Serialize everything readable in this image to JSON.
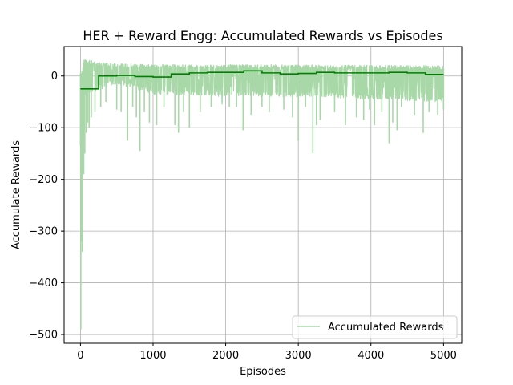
{
  "chart_data": {
    "type": "line",
    "title": "HER + Reward Engg: Accumulated Rewards vs Episodes",
    "xlabel": "Episodes",
    "ylabel": "Accumulate Rewards",
    "xlim": [
      -225,
      5250
    ],
    "ylim": [
      -517,
      57
    ],
    "xticks": [
      0,
      1000,
      2000,
      3000,
      4000,
      5000
    ],
    "yticks": [
      -500,
      -400,
      -300,
      -200,
      -100,
      0
    ],
    "xtick_labels": [
      "0",
      "1000",
      "2000",
      "3000",
      "4000",
      "5000"
    ],
    "ytick_labels": [
      "−500",
      "−400",
      "−300",
      "−200",
      "−100",
      "0"
    ],
    "grid": true,
    "legend_position": "lower-right",
    "series": [
      {
        "name": "Accumulated Rewards",
        "color": "#a8d8a8",
        "kind": "raw",
        "upper_band": [
          [
            20,
            10
          ],
          [
            50,
            33
          ],
          [
            150,
            30
          ],
          [
            250,
            27
          ],
          [
            400,
            24
          ],
          [
            1000,
            22
          ],
          [
            2500,
            22
          ],
          [
            5000,
            20
          ]
        ],
        "lower_band": [
          [
            0,
            -40
          ],
          [
            500,
            -15
          ],
          [
            1000,
            -35
          ],
          [
            2000,
            -40
          ],
          [
            3000,
            -40
          ],
          [
            4000,
            -45
          ],
          [
            5000,
            -50
          ]
        ],
        "spikes": [
          [
            0,
            -135
          ],
          [
            5,
            -490
          ],
          [
            15,
            -320
          ],
          [
            25,
            -340
          ],
          [
            45,
            -190
          ],
          [
            60,
            -150
          ],
          [
            80,
            -110
          ],
          [
            100,
            -90
          ],
          [
            120,
            -100
          ],
          [
            150,
            -80
          ],
          [
            200,
            -70
          ],
          [
            280,
            -60
          ],
          [
            350,
            -50
          ],
          [
            500,
            -65
          ],
          [
            560,
            -70
          ],
          [
            650,
            -125
          ],
          [
            720,
            -60
          ],
          [
            770,
            -80
          ],
          [
            820,
            -145
          ],
          [
            880,
            -70
          ],
          [
            950,
            -90
          ],
          [
            1050,
            -95
          ],
          [
            1150,
            -60
          ],
          [
            1300,
            -95
          ],
          [
            1350,
            -110
          ],
          [
            1420,
            -70
          ],
          [
            1500,
            -100
          ],
          [
            1650,
            -70
          ],
          [
            1800,
            -60
          ],
          [
            1950,
            -55
          ],
          [
            2050,
            -60
          ],
          [
            2150,
            -60
          ],
          [
            2240,
            -105
          ],
          [
            2350,
            -75
          ],
          [
            2500,
            -60
          ],
          [
            2600,
            -70
          ],
          [
            2800,
            -65
          ],
          [
            2920,
            -80
          ],
          [
            3000,
            -125
          ],
          [
            3100,
            -60
          ],
          [
            3200,
            -150
          ],
          [
            3250,
            -95
          ],
          [
            3300,
            -85
          ],
          [
            3500,
            -70
          ],
          [
            3650,
            -95
          ],
          [
            3800,
            -80
          ],
          [
            3900,
            -85
          ],
          [
            3980,
            -65
          ],
          [
            4050,
            -95
          ],
          [
            4150,
            -70
          ],
          [
            4250,
            -130
          ],
          [
            4300,
            -90
          ],
          [
            4360,
            -105
          ],
          [
            4420,
            -60
          ],
          [
            4600,
            -75
          ],
          [
            4720,
            -110
          ],
          [
            4800,
            -70
          ],
          [
            4920,
            -75
          ],
          [
            5000,
            -65
          ]
        ]
      },
      {
        "name": "",
        "color": "#008000",
        "kind": "step",
        "points": [
          [
            0,
            -25
          ],
          [
            250,
            -25
          ],
          [
            250,
            0
          ],
          [
            500,
            0
          ],
          [
            500,
            1
          ],
          [
            750,
            1
          ],
          [
            750,
            -1
          ],
          [
            1000,
            -1
          ],
          [
            1000,
            -2
          ],
          [
            1250,
            -2
          ],
          [
            1250,
            4
          ],
          [
            1500,
            4
          ],
          [
            1500,
            6
          ],
          [
            1750,
            6
          ],
          [
            1750,
            7
          ],
          [
            2000,
            7
          ],
          [
            2000,
            7
          ],
          [
            2250,
            7
          ],
          [
            2250,
            10
          ],
          [
            2500,
            10
          ],
          [
            2500,
            6
          ],
          [
            2750,
            6
          ],
          [
            2750,
            4
          ],
          [
            3000,
            4
          ],
          [
            3000,
            5
          ],
          [
            3250,
            5
          ],
          [
            3250,
            7
          ],
          [
            3500,
            7
          ],
          [
            3500,
            6
          ],
          [
            3750,
            6
          ],
          [
            3750,
            6
          ],
          [
            4000,
            6
          ],
          [
            4000,
            6
          ],
          [
            4250,
            6
          ],
          [
            4250,
            7
          ],
          [
            4500,
            7
          ],
          [
            4500,
            6
          ],
          [
            4750,
            6
          ],
          [
            4750,
            3
          ],
          [
            5000,
            3
          ]
        ]
      }
    ]
  }
}
